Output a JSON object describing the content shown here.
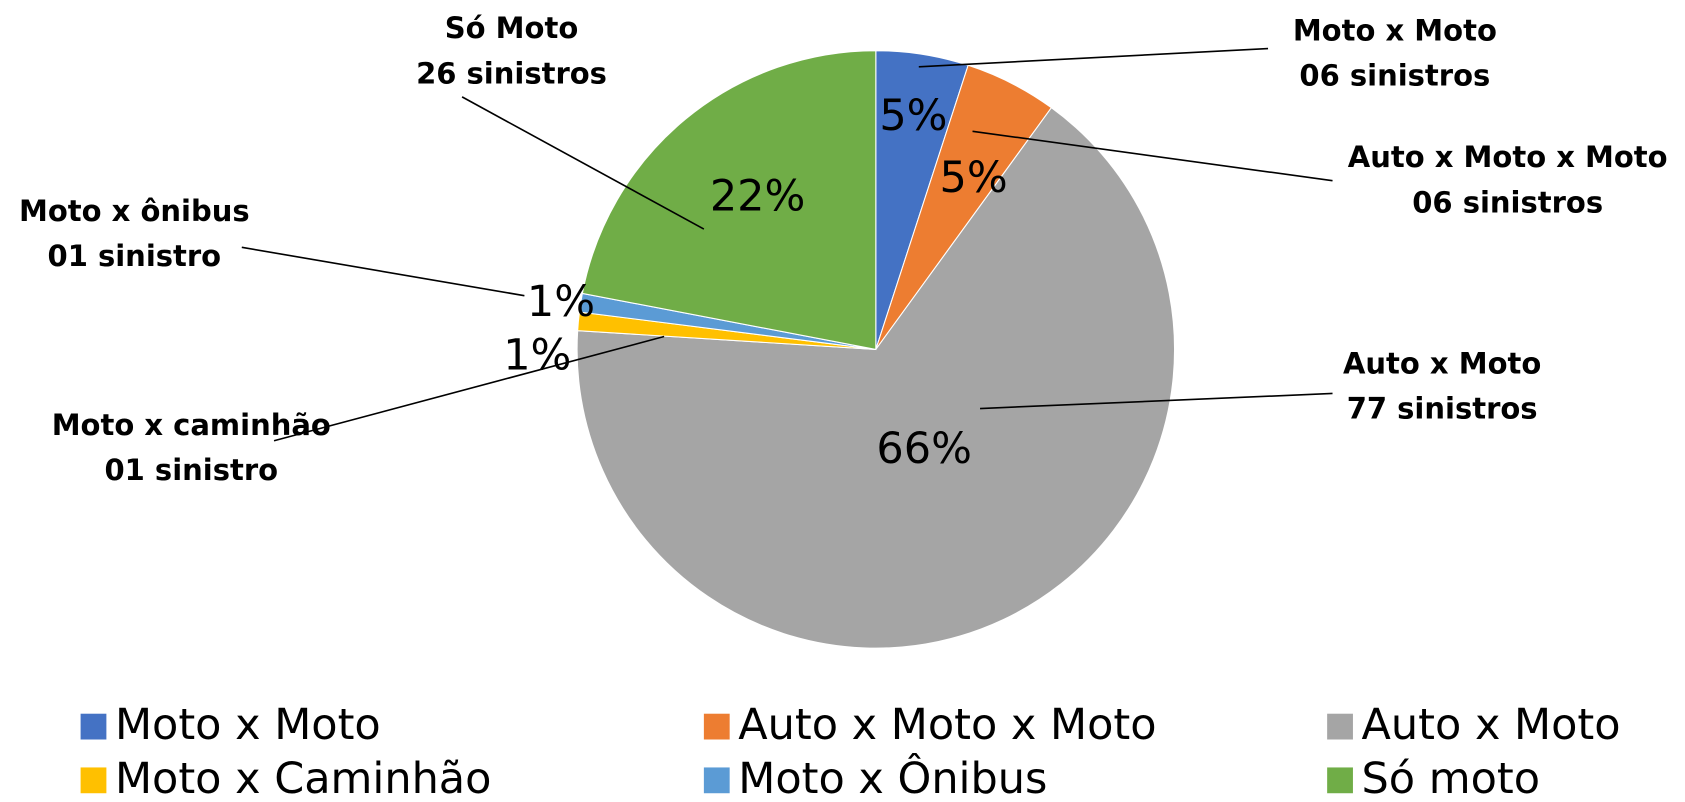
{
  "chart_data": {
    "type": "pie",
    "categories": [
      "Moto x Moto",
      "Auto x Moto x Moto",
      "Auto x Moto",
      "Moto x Caminhão",
      "Moto x Ônibus",
      "Só moto"
    ],
    "values": [
      5,
      5,
      66,
      1,
      1,
      22
    ],
    "value_labels": [
      "5%",
      "5%",
      "66%",
      "1%",
      "1%",
      "22%"
    ],
    "colors": [
      "#4472c4",
      "#ed7d31",
      "#a5a5a5",
      "#ffc000",
      "#5b9bd5",
      "#70ad47"
    ],
    "annotations": [
      [
        "Moto x Moto",
        "06 sinistros"
      ],
      [
        "Auto x Moto x Moto",
        "06 sinistros"
      ],
      [
        "Auto x Moto",
        "77 sinistros"
      ],
      [
        "Moto x caminhão",
        "01 sinistro"
      ],
      [
        "Moto x ônibus",
        "01 sinistro"
      ],
      [
        "Só Moto",
        "26 sinistros"
      ]
    ],
    "legend": "bottom"
  }
}
